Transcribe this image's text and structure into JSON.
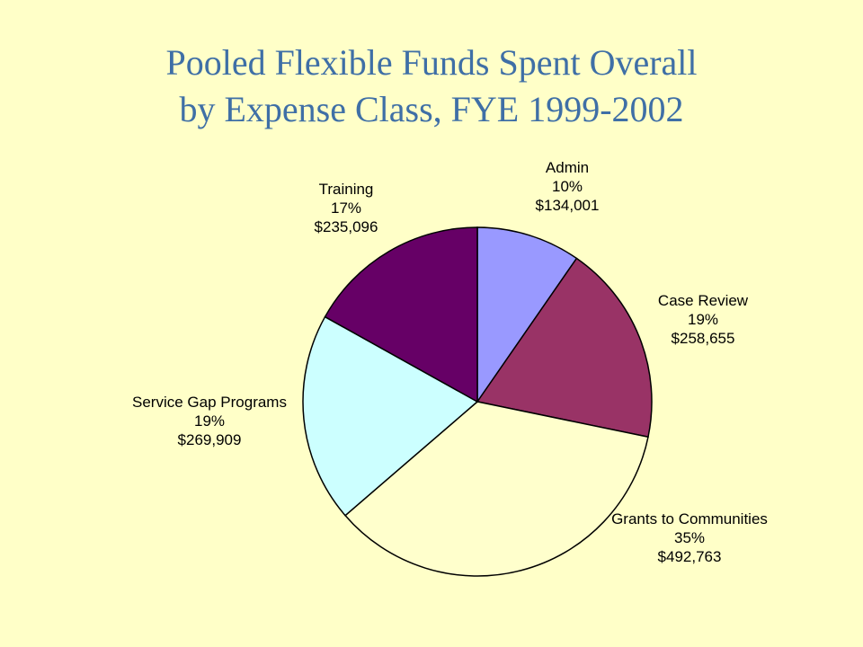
{
  "chart_data": {
    "type": "pie",
    "title_lines": [
      "Pooled Flexible Funds Spent Overall",
      "by Expense Class, FYE 1999-2002"
    ],
    "slices": [
      {
        "name": "Admin",
        "percent_label": "10%",
        "amount_label": "$134,001",
        "value": 134001,
        "color": "#9999FF"
      },
      {
        "name": "Case Review",
        "percent_label": "19%",
        "amount_label": "$258,655",
        "value": 258655,
        "color": "#993366"
      },
      {
        "name": "Grants to Communities",
        "percent_label": "35%",
        "amount_label": "$492,763",
        "value": 492763,
        "color": "#FFFFCC"
      },
      {
        "name": "Service Gap Programs",
        "percent_label": "19%",
        "amount_label": "$269,909",
        "value": 269909,
        "color": "#CCFFFF"
      },
      {
        "name": "Training",
        "percent_label": "17%",
        "amount_label": "$235,096",
        "value": 235096,
        "color": "#660066"
      }
    ],
    "start_angle": "12 o'clock",
    "direction": "clockwise",
    "outline_color": "#000000",
    "legend": "none",
    "background_color": "#FFFFC8"
  }
}
